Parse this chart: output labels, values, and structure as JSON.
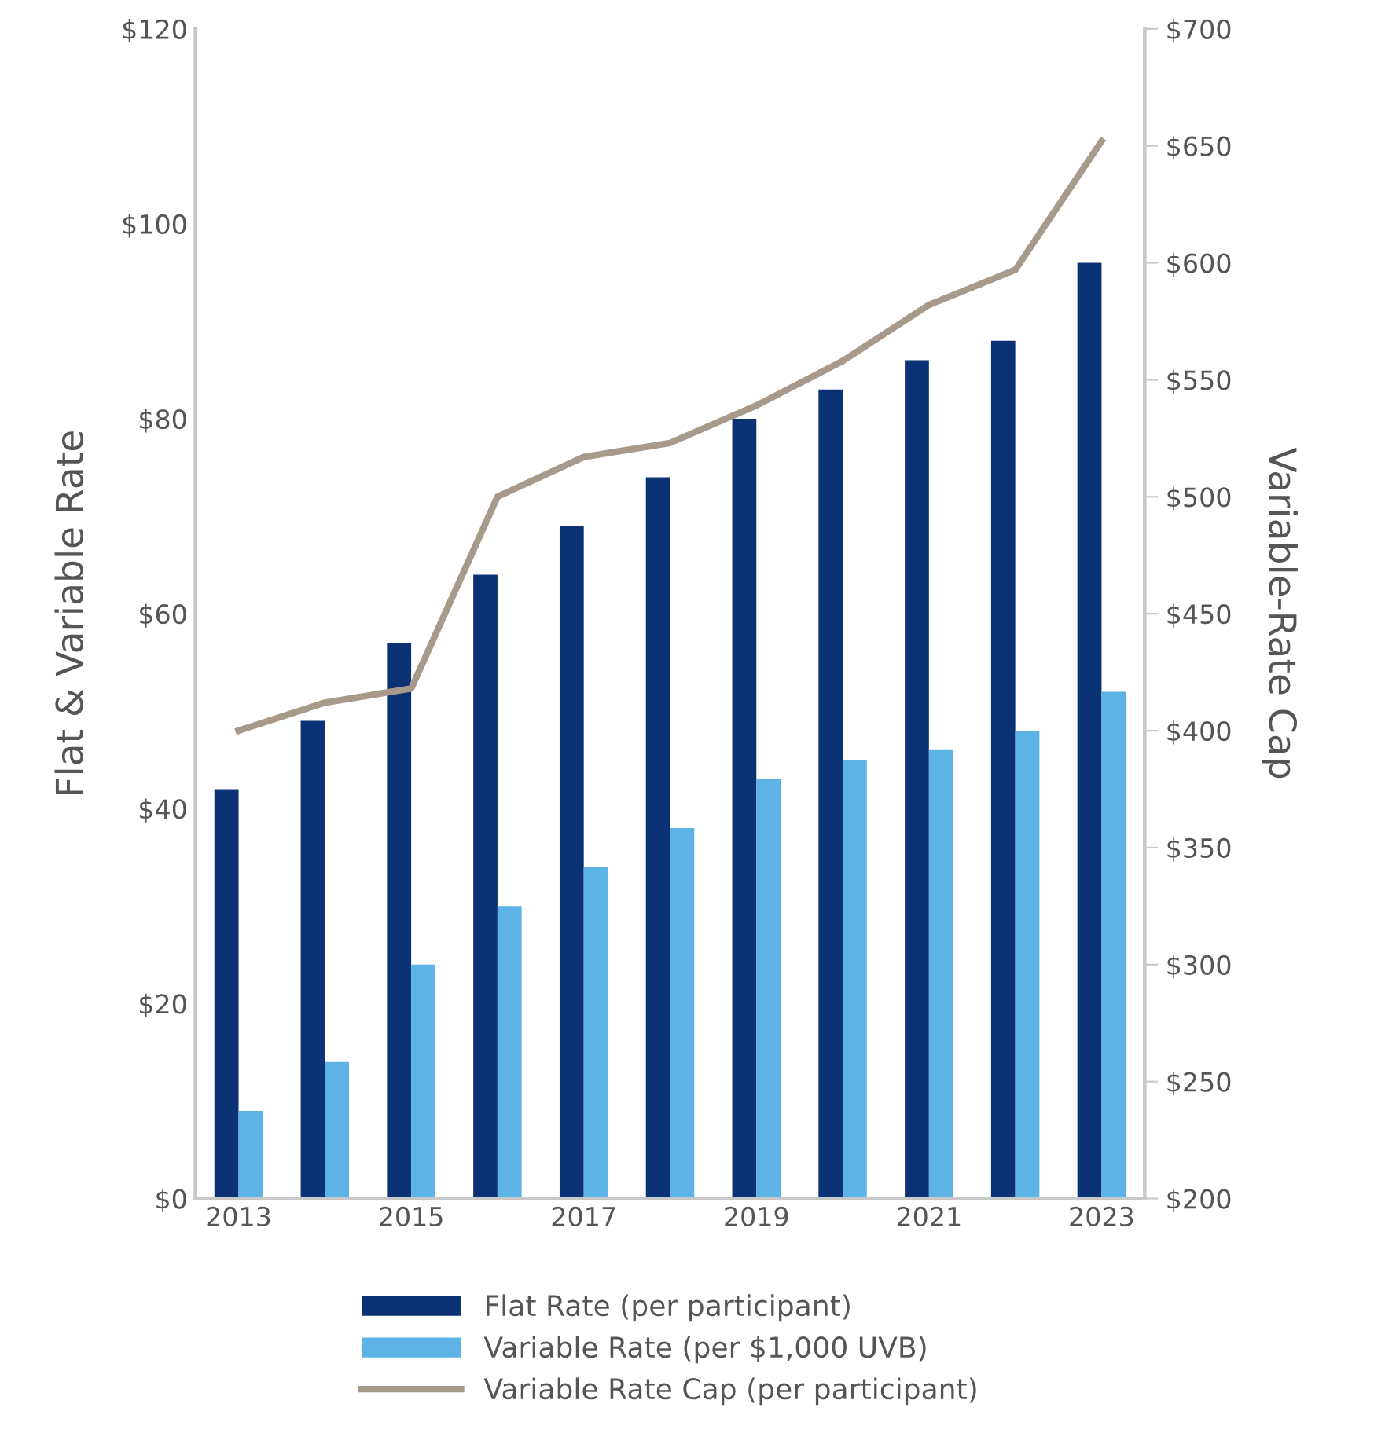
{
  "chart_data": {
    "type": "bar",
    "categories": [
      "2013",
      null,
      "2015",
      null,
      "2017",
      null,
      "2019",
      null,
      "2021",
      null,
      "2023"
    ],
    "ylabel": "Flat & Variable Rate",
    "y2label": "Variable-Rate Cap",
    "ylim": [
      0,
      120
    ],
    "yticks": [
      {
        "value": 0,
        "label": "$0"
      },
      {
        "value": 20,
        "label": "$20"
      },
      {
        "value": 40,
        "label": "$40"
      },
      {
        "value": 60,
        "label": "$60"
      },
      {
        "value": 80,
        "label": "$80"
      },
      {
        "value": 100,
        "label": "$100"
      },
      {
        "value": 120,
        "label": "$120"
      }
    ],
    "y2lim": [
      200,
      700
    ],
    "y2ticks": [
      {
        "value": 200,
        "label": "$200"
      },
      {
        "value": 250,
        "label": "$250"
      },
      {
        "value": 300,
        "label": "$300"
      },
      {
        "value": 350,
        "label": "$350"
      },
      {
        "value": 400,
        "label": "$400"
      },
      {
        "value": 450,
        "label": "$450"
      },
      {
        "value": 500,
        "label": "$500"
      },
      {
        "value": 550,
        "label": "$550"
      },
      {
        "value": 600,
        "label": "$600"
      },
      {
        "value": 650,
        "label": "$650"
      },
      {
        "value": 700,
        "label": "$700"
      }
    ],
    "legend": "bottom",
    "grid": false,
    "series": [
      {
        "name": "Flat Rate (per participant)",
        "color": "#0b3275",
        "values": [
          42,
          49,
          57,
          64,
          69,
          74,
          80,
          83,
          86,
          88,
          96
        ]
      },
      {
        "name": "Variable Rate (per $1,000 UVB)",
        "color": "#5db3e6",
        "values": [
          9,
          14,
          24,
          30,
          34,
          38,
          43,
          45,
          46,
          48,
          52
        ]
      },
      {
        "name": "Variable Rate Cap (per participant)",
        "color": "#a89a8a",
        "type": "line",
        "axis": "y2",
        "values": [
          400,
          412,
          418,
          500,
          517,
          523,
          539,
          558,
          582,
          597,
          652
        ]
      }
    ]
  }
}
